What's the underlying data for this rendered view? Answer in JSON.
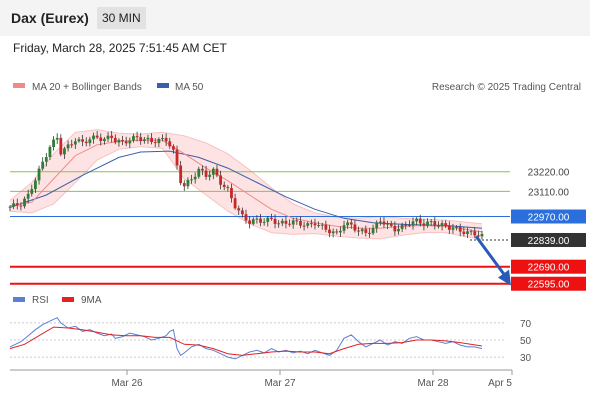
{
  "header": {
    "instrument": "Dax (Eurex)",
    "timeframe": "30 MIN"
  },
  "datetime": "Friday, March 28, 2025 7:51:45 AM CET",
  "colors": {
    "bollinger": "#f08a8a",
    "band_fill": "#fde3e3",
    "ma50": "#3a5fa8",
    "candle_up": "#2e7d32",
    "candle_down": "#c62828",
    "support": "#ee1111",
    "resistance_green": "#8bc34a",
    "pivot_blue": "#2a6fdb",
    "current": "#333333",
    "arrow": "#2a5ab8",
    "rsi": "#5b7fd6",
    "rsi_ma": "#e32222"
  },
  "chart_data": [
    {
      "type": "candlestick",
      "title": "",
      "legend": [
        {
          "name": "MA 20 + Bollinger Bands",
          "color": "#f08a8a"
        },
        {
          "name": "MA 50",
          "color": "#3a5fa8"
        }
      ],
      "legend_position": "top-left",
      "credit": "Research © 2025 Trading Central",
      "x_ticks": [
        "Mar 26",
        "Mar 27",
        "Mar 28",
        "Apr 5"
      ],
      "y_range": [
        22560,
        23620
      ],
      "price_path": [
        [
          0,
          23025
        ],
        [
          3,
          23040
        ],
        [
          5,
          23085
        ],
        [
          7,
          23180
        ],
        [
          9,
          23270
        ],
        [
          11,
          23360
        ],
        [
          13,
          23410
        ],
        [
          14,
          23330
        ],
        [
          16,
          23360
        ],
        [
          18,
          23400
        ],
        [
          20,
          23380
        ],
        [
          22,
          23405
        ],
        [
          24,
          23410
        ],
        [
          26,
          23400
        ],
        [
          28,
          23415
        ],
        [
          29,
          23395
        ],
        [
          31,
          23380
        ],
        [
          33,
          23400
        ],
        [
          35,
          23410
        ],
        [
          37,
          23400
        ],
        [
          39,
          23390
        ],
        [
          41,
          23395
        ],
        [
          43,
          23400
        ],
        [
          44,
          23370
        ],
        [
          45,
          23330
        ],
        [
          46,
          23250
        ],
        [
          47,
          23170
        ],
        [
          48,
          23140
        ],
        [
          50,
          23180
        ],
        [
          52,
          23230
        ],
        [
          54,
          23200
        ],
        [
          56,
          23225
        ],
        [
          58,
          23160
        ],
        [
          60,
          23115
        ],
        [
          62,
          23030
        ],
        [
          64,
          22970
        ],
        [
          66,
          22940
        ],
        [
          68,
          22950
        ],
        [
          70,
          22945
        ],
        [
          72,
          22955
        ],
        [
          74,
          22930
        ],
        [
          76,
          22935
        ],
        [
          78,
          22940
        ],
        [
          80,
          22930
        ],
        [
          82,
          22920
        ],
        [
          84,
          22935
        ],
        [
          86,
          22910
        ],
        [
          88,
          22890
        ],
        [
          90,
          22870
        ],
        [
          92,
          22930
        ],
        [
          94,
          22920
        ],
        [
          96,
          22890
        ],
        [
          98,
          22880
        ],
        [
          100,
          22900
        ],
        [
          102,
          22950
        ],
        [
          104,
          22920
        ],
        [
          106,
          22900
        ],
        [
          108,
          22910
        ],
        [
          110,
          22935
        ],
        [
          112,
          22945
        ],
        [
          114,
          22930
        ],
        [
          116,
          22935
        ],
        [
          118,
          22925
        ],
        [
          120,
          22915
        ],
        [
          122,
          22905
        ],
        [
          124,
          22890
        ],
        [
          126,
          22880
        ],
        [
          128,
          22875
        ],
        [
          130,
          22860
        ]
      ],
      "ma20": [
        [
          0,
          23030
        ],
        [
          6,
          23050
        ],
        [
          12,
          23180
        ],
        [
          18,
          23310
        ],
        [
          24,
          23370
        ],
        [
          30,
          23390
        ],
        [
          36,
          23395
        ],
        [
          42,
          23395
        ],
        [
          48,
          23320
        ],
        [
          54,
          23240
        ],
        [
          60,
          23170
        ],
        [
          66,
          23090
        ],
        [
          72,
          23010
        ],
        [
          78,
          22960
        ],
        [
          84,
          22935
        ],
        [
          90,
          22915
        ],
        [
          96,
          22905
        ],
        [
          102,
          22905
        ],
        [
          108,
          22915
        ],
        [
          114,
          22920
        ],
        [
          120,
          22915
        ],
        [
          130,
          22885
        ]
      ],
      "bb_upper": [
        [
          0,
          23060
        ],
        [
          6,
          23160
        ],
        [
          12,
          23320
        ],
        [
          18,
          23440
        ],
        [
          24,
          23455
        ],
        [
          30,
          23435
        ],
        [
          36,
          23430
        ],
        [
          42,
          23440
        ],
        [
          48,
          23420
        ],
        [
          54,
          23380
        ],
        [
          60,
          23320
        ],
        [
          66,
          23230
        ],
        [
          72,
          23130
        ],
        [
          78,
          23040
        ],
        [
          84,
          22990
        ],
        [
          90,
          22965
        ],
        [
          96,
          22960
        ],
        [
          102,
          22970
        ],
        [
          108,
          22960
        ],
        [
          114,
          22955
        ],
        [
          120,
          22950
        ],
        [
          130,
          22930
        ]
      ],
      "bb_lower": [
        [
          0,
          23000
        ],
        [
          6,
          22990
        ],
        [
          12,
          23040
        ],
        [
          18,
          23160
        ],
        [
          24,
          23285
        ],
        [
          30,
          23345
        ],
        [
          36,
          23360
        ],
        [
          42,
          23350
        ],
        [
          48,
          23180
        ],
        [
          54,
          23090
        ],
        [
          60,
          23000
        ],
        [
          66,
          22930
        ],
        [
          72,
          22880
        ],
        [
          78,
          22870
        ],
        [
          84,
          22875
        ],
        [
          90,
          22860
        ],
        [
          96,
          22850
        ],
        [
          102,
          22845
        ],
        [
          108,
          22865
        ],
        [
          114,
          22880
        ],
        [
          120,
          22880
        ],
        [
          130,
          22840
        ]
      ],
      "ma50": [
        [
          0,
          23020
        ],
        [
          10,
          23090
        ],
        [
          20,
          23200
        ],
        [
          30,
          23300
        ],
        [
          36,
          23330
        ],
        [
          44,
          23335
        ],
        [
          52,
          23300
        ],
        [
          60,
          23240
        ],
        [
          68,
          23160
        ],
        [
          76,
          23080
        ],
        [
          84,
          23010
        ],
        [
          92,
          22960
        ],
        [
          100,
          22935
        ],
        [
          110,
          22925
        ],
        [
          120,
          22920
        ],
        [
          130,
          22905
        ]
      ],
      "levels": [
        {
          "value": 23220,
          "label": "23220.00",
          "kind": "resistance-green",
          "color": "#8bc34a"
        },
        {
          "value": 23110,
          "label": "23110.00",
          "kind": "resistance-green",
          "color": "#8bc34a"
        },
        {
          "value": 22970,
          "label": "22970.00",
          "kind": "pivot",
          "color": "#2a6fdb"
        },
        {
          "value": 22839,
          "label": "22839.00",
          "kind": "current",
          "color": "#333333"
        },
        {
          "value": 22690,
          "label": "22690.00",
          "kind": "support",
          "color": "#ee1111"
        },
        {
          "value": 22595,
          "label": "22595.00",
          "kind": "support",
          "color": "#ee1111"
        }
      ],
      "forecast_arrow": {
        "from": [
          22860
        ],
        "to": [
          22640
        ]
      }
    },
    {
      "type": "line",
      "title": "",
      "legend": [
        {
          "name": "RSI",
          "color": "#5b7fd6"
        },
        {
          "name": "9MA",
          "color": "#e32222"
        }
      ],
      "y_ticks": [
        70,
        50,
        30
      ],
      "y_range": [
        15,
        85
      ],
      "rsi": [
        [
          0,
          42
        ],
        [
          3,
          48
        ],
        [
          5,
          55
        ],
        [
          7,
          62
        ],
        [
          9,
          68
        ],
        [
          11,
          72
        ],
        [
          13,
          76
        ],
        [
          14,
          70
        ],
        [
          16,
          64
        ],
        [
          18,
          66
        ],
        [
          20,
          60
        ],
        [
          22,
          62
        ],
        [
          24,
          58
        ],
        [
          26,
          55
        ],
        [
          28,
          57
        ],
        [
          29,
          52
        ],
        [
          31,
          54
        ],
        [
          33,
          58
        ],
        [
          35,
          56
        ],
        [
          37,
          54
        ],
        [
          39,
          50
        ],
        [
          41,
          52
        ],
        [
          43,
          55
        ],
        [
          44,
          60
        ],
        [
          45,
          62
        ],
        [
          46,
          40
        ],
        [
          47,
          32
        ],
        [
          48,
          35
        ],
        [
          50,
          42
        ],
        [
          52,
          45
        ],
        [
          54,
          40
        ],
        [
          56,
          38
        ],
        [
          58,
          34
        ],
        [
          60,
          30
        ],
        [
          62,
          28
        ],
        [
          64,
          32
        ],
        [
          66,
          36
        ],
        [
          68,
          38
        ],
        [
          70,
          35
        ],
        [
          72,
          40
        ],
        [
          74,
          36
        ],
        [
          76,
          38
        ],
        [
          78,
          35
        ],
        [
          80,
          37
        ],
        [
          82,
          34
        ],
        [
          84,
          38
        ],
        [
          86,
          35
        ],
        [
          88,
          32
        ],
        [
          90,
          38
        ],
        [
          92,
          52
        ],
        [
          94,
          56
        ],
        [
          96,
          48
        ],
        [
          98,
          42
        ],
        [
          100,
          46
        ],
        [
          102,
          50
        ],
        [
          104,
          44
        ],
        [
          106,
          48
        ],
        [
          108,
          46
        ],
        [
          110,
          52
        ],
        [
          112,
          54
        ],
        [
          114,
          50
        ],
        [
          116,
          50
        ],
        [
          118,
          48
        ],
        [
          120,
          46
        ],
        [
          122,
          48
        ],
        [
          124,
          44
        ],
        [
          126,
          42
        ],
        [
          128,
          42
        ],
        [
          130,
          40
        ]
      ],
      "rsi_ma": [
        [
          0,
          40
        ],
        [
          4,
          45
        ],
        [
          8,
          55
        ],
        [
          12,
          65
        ],
        [
          16,
          64
        ],
        [
          20,
          62
        ],
        [
          24,
          59
        ],
        [
          28,
          56
        ],
        [
          32,
          55
        ],
        [
          36,
          55
        ],
        [
          40,
          53
        ],
        [
          44,
          53
        ],
        [
          48,
          45
        ],
        [
          52,
          44
        ],
        [
          56,
          40
        ],
        [
          60,
          34
        ],
        [
          64,
          32
        ],
        [
          68,
          34
        ],
        [
          72,
          36
        ],
        [
          76,
          37
        ],
        [
          80,
          36
        ],
        [
          84,
          36
        ],
        [
          88,
          34
        ],
        [
          92,
          40
        ],
        [
          96,
          45
        ],
        [
          100,
          46
        ],
        [
          104,
          46
        ],
        [
          108,
          47
        ],
        [
          112,
          50
        ],
        [
          116,
          50
        ],
        [
          120,
          49
        ],
        [
          124,
          47
        ],
        [
          130,
          43
        ]
      ]
    }
  ]
}
